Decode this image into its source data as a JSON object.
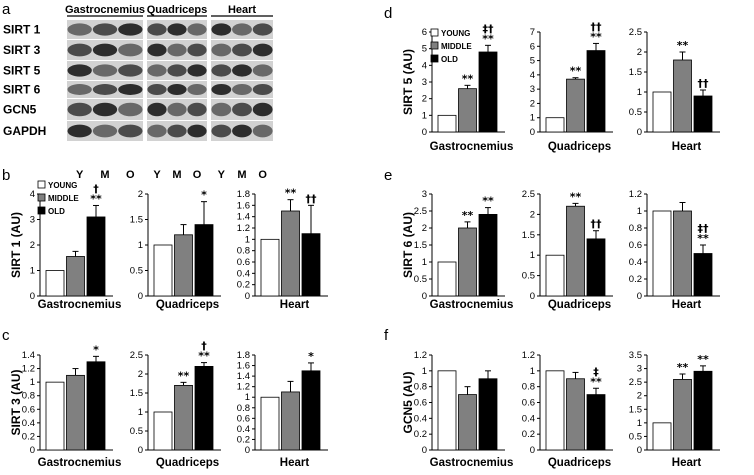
{
  "blot": {
    "panel_label": "a",
    "tissues": [
      "Gastrocnemius",
      "Quadriceps",
      "Heart"
    ],
    "proteins": [
      "SIRT 1",
      "SIRT 3",
      "SIRT 5",
      "SIRT 6",
      "GCN5",
      "GAPDH"
    ],
    "lanes": [
      "Y",
      "M",
      "O"
    ]
  },
  "legend": [
    "YOUNG",
    "MIDDLE",
    "OLD"
  ],
  "colors": {
    "young": "#ffffff",
    "middle": "#808080",
    "old": "#000000",
    "axis": "#000000"
  },
  "chart_data": [
    {
      "panel": "b",
      "type": "bar",
      "ylabel": "SIRT 1 (AU)",
      "legend": true,
      "groups": [
        {
          "category": "Gastrocnemius",
          "ylim": [
            0,
            4
          ],
          "yticks": [
            "0",
            "1",
            "2",
            "3",
            "4"
          ],
          "tickvals": [
            0,
            1,
            2,
            3,
            4
          ],
          "values": [
            1.0,
            1.55,
            3.1
          ],
          "errors": [
            0,
            0.2,
            0.45
          ],
          "sig": [
            "",
            "",
            "†\n**"
          ]
        },
        {
          "category": "Quadriceps",
          "ylim": [
            0,
            2
          ],
          "yticks": [
            "0",
            "0.5",
            "1",
            "1.5",
            "2"
          ],
          "tickvals": [
            0,
            0.5,
            1,
            1.5,
            2
          ],
          "values": [
            1.0,
            1.2,
            1.4
          ],
          "errors": [
            0,
            0.2,
            0.45
          ],
          "sig": [
            "",
            "",
            "*"
          ]
        },
        {
          "category": "Heart",
          "ylim": [
            0,
            1.8
          ],
          "yticks": [
            "0",
            "0.2",
            "0.4",
            "0.6",
            "0.8",
            "1",
            "1.2",
            "1.4",
            "1.6",
            "1.8"
          ],
          "tickvals": [
            0,
            0.2,
            0.4,
            0.6,
            0.8,
            1,
            1.2,
            1.4,
            1.6,
            1.8
          ],
          "values": [
            1.0,
            1.5,
            1.1
          ],
          "errors": [
            0,
            0.2,
            0.5
          ],
          "sig": [
            "",
            "**",
            "††"
          ]
        }
      ]
    },
    {
      "panel": "c",
      "type": "bar",
      "ylabel": "SIRT 3 (AU)",
      "legend": false,
      "groups": [
        {
          "category": "Gastrocnemius",
          "ylim": [
            0,
            1.4
          ],
          "yticks": [
            "0",
            "0.2",
            "0.4",
            "0.6",
            "0.8",
            "1",
            "1.2",
            "1.4"
          ],
          "tickvals": [
            0,
            0.2,
            0.4,
            0.6,
            0.8,
            1,
            1.2,
            1.4
          ],
          "values": [
            1.0,
            1.1,
            1.3
          ],
          "errors": [
            0,
            0.1,
            0.08
          ],
          "sig": [
            "",
            "",
            "*"
          ]
        },
        {
          "category": "Quadriceps",
          "ylim": [
            0,
            2.5
          ],
          "yticks": [
            "0",
            "0.5",
            "1",
            "1.5",
            "2",
            "2.5"
          ],
          "tickvals": [
            0,
            0.5,
            1,
            1.5,
            2,
            2.5
          ],
          "values": [
            1.0,
            1.7,
            2.2
          ],
          "errors": [
            0,
            0.08,
            0.1
          ],
          "sig": [
            "",
            "**",
            "†\n**"
          ]
        },
        {
          "category": "Heart",
          "ylim": [
            0,
            1.8
          ],
          "yticks": [
            "0",
            "0.2",
            "0.4",
            "0.6",
            "0.8",
            "1",
            "1.2",
            "1.4",
            "1.6",
            "1.8"
          ],
          "tickvals": [
            0,
            0.2,
            0.4,
            0.6,
            0.8,
            1,
            1.2,
            1.4,
            1.6,
            1.8
          ],
          "values": [
            1.0,
            1.1,
            1.5
          ],
          "errors": [
            0,
            0.2,
            0.15
          ],
          "sig": [
            "",
            "",
            "*"
          ]
        }
      ]
    },
    {
      "panel": "d",
      "type": "bar",
      "ylabel": "SIRT 5 (AU)",
      "legend": true,
      "groups": [
        {
          "category": "Gastrocnemius",
          "ylim": [
            0,
            6
          ],
          "yticks": [
            "0",
            "1",
            "2",
            "3",
            "4",
            "5",
            "6"
          ],
          "tickvals": [
            0,
            1,
            2,
            3,
            4,
            5,
            6
          ],
          "values": [
            1.0,
            2.6,
            4.8
          ],
          "errors": [
            0,
            0.2,
            0.4
          ],
          "sig": [
            "",
            "**",
            "‡†\n**"
          ]
        },
        {
          "category": "Quadriceps",
          "ylim": [
            0,
            7
          ],
          "yticks": [
            "0",
            "1",
            "2",
            "3",
            "4",
            "5",
            "6",
            "7"
          ],
          "tickvals": [
            0,
            1,
            2,
            3,
            4,
            5,
            6,
            7
          ],
          "values": [
            1.0,
            3.7,
            5.7
          ],
          "errors": [
            0,
            0.1,
            0.5
          ],
          "sig": [
            "",
            "**",
            "††\n**"
          ]
        },
        {
          "category": "Heart",
          "ylim": [
            0,
            2.5
          ],
          "yticks": [
            "0",
            "0.5",
            "1",
            "1.5",
            "2",
            "2.5"
          ],
          "tickvals": [
            0,
            0.5,
            1,
            1.5,
            2,
            2.5
          ],
          "values": [
            1.0,
            1.8,
            0.9
          ],
          "errors": [
            0,
            0.2,
            0.15
          ],
          "sig": [
            "",
            "**",
            "††"
          ]
        }
      ]
    },
    {
      "panel": "e",
      "type": "bar",
      "ylabel": "SIRT 6 (AU)",
      "legend": false,
      "groups": [
        {
          "category": "Gastrocnemius",
          "ylim": [
            0,
            3
          ],
          "yticks": [
            "0",
            "0.5",
            "1",
            "1.5",
            "2",
            "2.5",
            "3"
          ],
          "tickvals": [
            0,
            0.5,
            1,
            1.5,
            2,
            2.5,
            3
          ],
          "values": [
            1.0,
            2.0,
            2.4
          ],
          "errors": [
            0,
            0.18,
            0.2
          ],
          "sig": [
            "",
            "**",
            "**"
          ]
        },
        {
          "category": "Quadriceps",
          "ylim": [
            0,
            2.5
          ],
          "yticks": [
            "0",
            "0.5",
            "1",
            "1.5",
            "2",
            "2.5"
          ],
          "tickvals": [
            0,
            0.5,
            1,
            1.5,
            2,
            2.5
          ],
          "values": [
            1.0,
            2.2,
            1.4
          ],
          "errors": [
            0,
            0.07,
            0.2
          ],
          "sig": [
            "",
            "**",
            "††"
          ]
        },
        {
          "category": "Heart",
          "ylim": [
            0,
            1.2
          ],
          "yticks": [
            "0",
            "0.2",
            "0.4",
            "0.6",
            "0.8",
            "1",
            "1.2"
          ],
          "tickvals": [
            0,
            0.2,
            0.4,
            0.6,
            0.8,
            1,
            1.2
          ],
          "values": [
            1.0,
            1.0,
            0.5
          ],
          "errors": [
            0,
            0.1,
            0.1
          ],
          "sig": [
            "",
            "",
            "‡†\n**"
          ]
        }
      ]
    },
    {
      "panel": "f",
      "type": "bar",
      "ylabel": "GCN5 (AU)",
      "legend": false,
      "groups": [
        {
          "category": "Gastrocnemius",
          "ylim": [
            0,
            1.2
          ],
          "yticks": [
            "0",
            "0.2",
            "0.4",
            "0.6",
            "0.8",
            "1",
            "1.2"
          ],
          "tickvals": [
            0,
            0.2,
            0.4,
            0.6,
            0.8,
            1,
            1.2
          ],
          "values": [
            1.0,
            0.7,
            0.9
          ],
          "errors": [
            0,
            0.1,
            0.1
          ],
          "sig": [
            "",
            "",
            ""
          ]
        },
        {
          "category": "Quadriceps",
          "ylim": [
            0,
            1.2
          ],
          "yticks": [
            "0",
            "0.2",
            "0.4",
            "0.6",
            "0.8",
            "1",
            "1.2"
          ],
          "tickvals": [
            0,
            0.2,
            0.4,
            0.6,
            0.8,
            1,
            1.2
          ],
          "values": [
            1.0,
            0.9,
            0.7
          ],
          "errors": [
            0,
            0.08,
            0.08
          ],
          "sig": [
            "",
            "",
            "‡\n**"
          ]
        },
        {
          "category": "Heart",
          "ylim": [
            0,
            3.5
          ],
          "yticks": [
            "0",
            "0.5",
            "1",
            "1.5",
            "2",
            "2.5",
            "3",
            "3.5"
          ],
          "tickvals": [
            0,
            0.5,
            1,
            1.5,
            2,
            2.5,
            3,
            3.5
          ],
          "values": [
            1.0,
            2.6,
            2.9
          ],
          "errors": [
            0,
            0.2,
            0.2
          ],
          "sig": [
            "",
            "**",
            "**"
          ]
        }
      ]
    }
  ]
}
